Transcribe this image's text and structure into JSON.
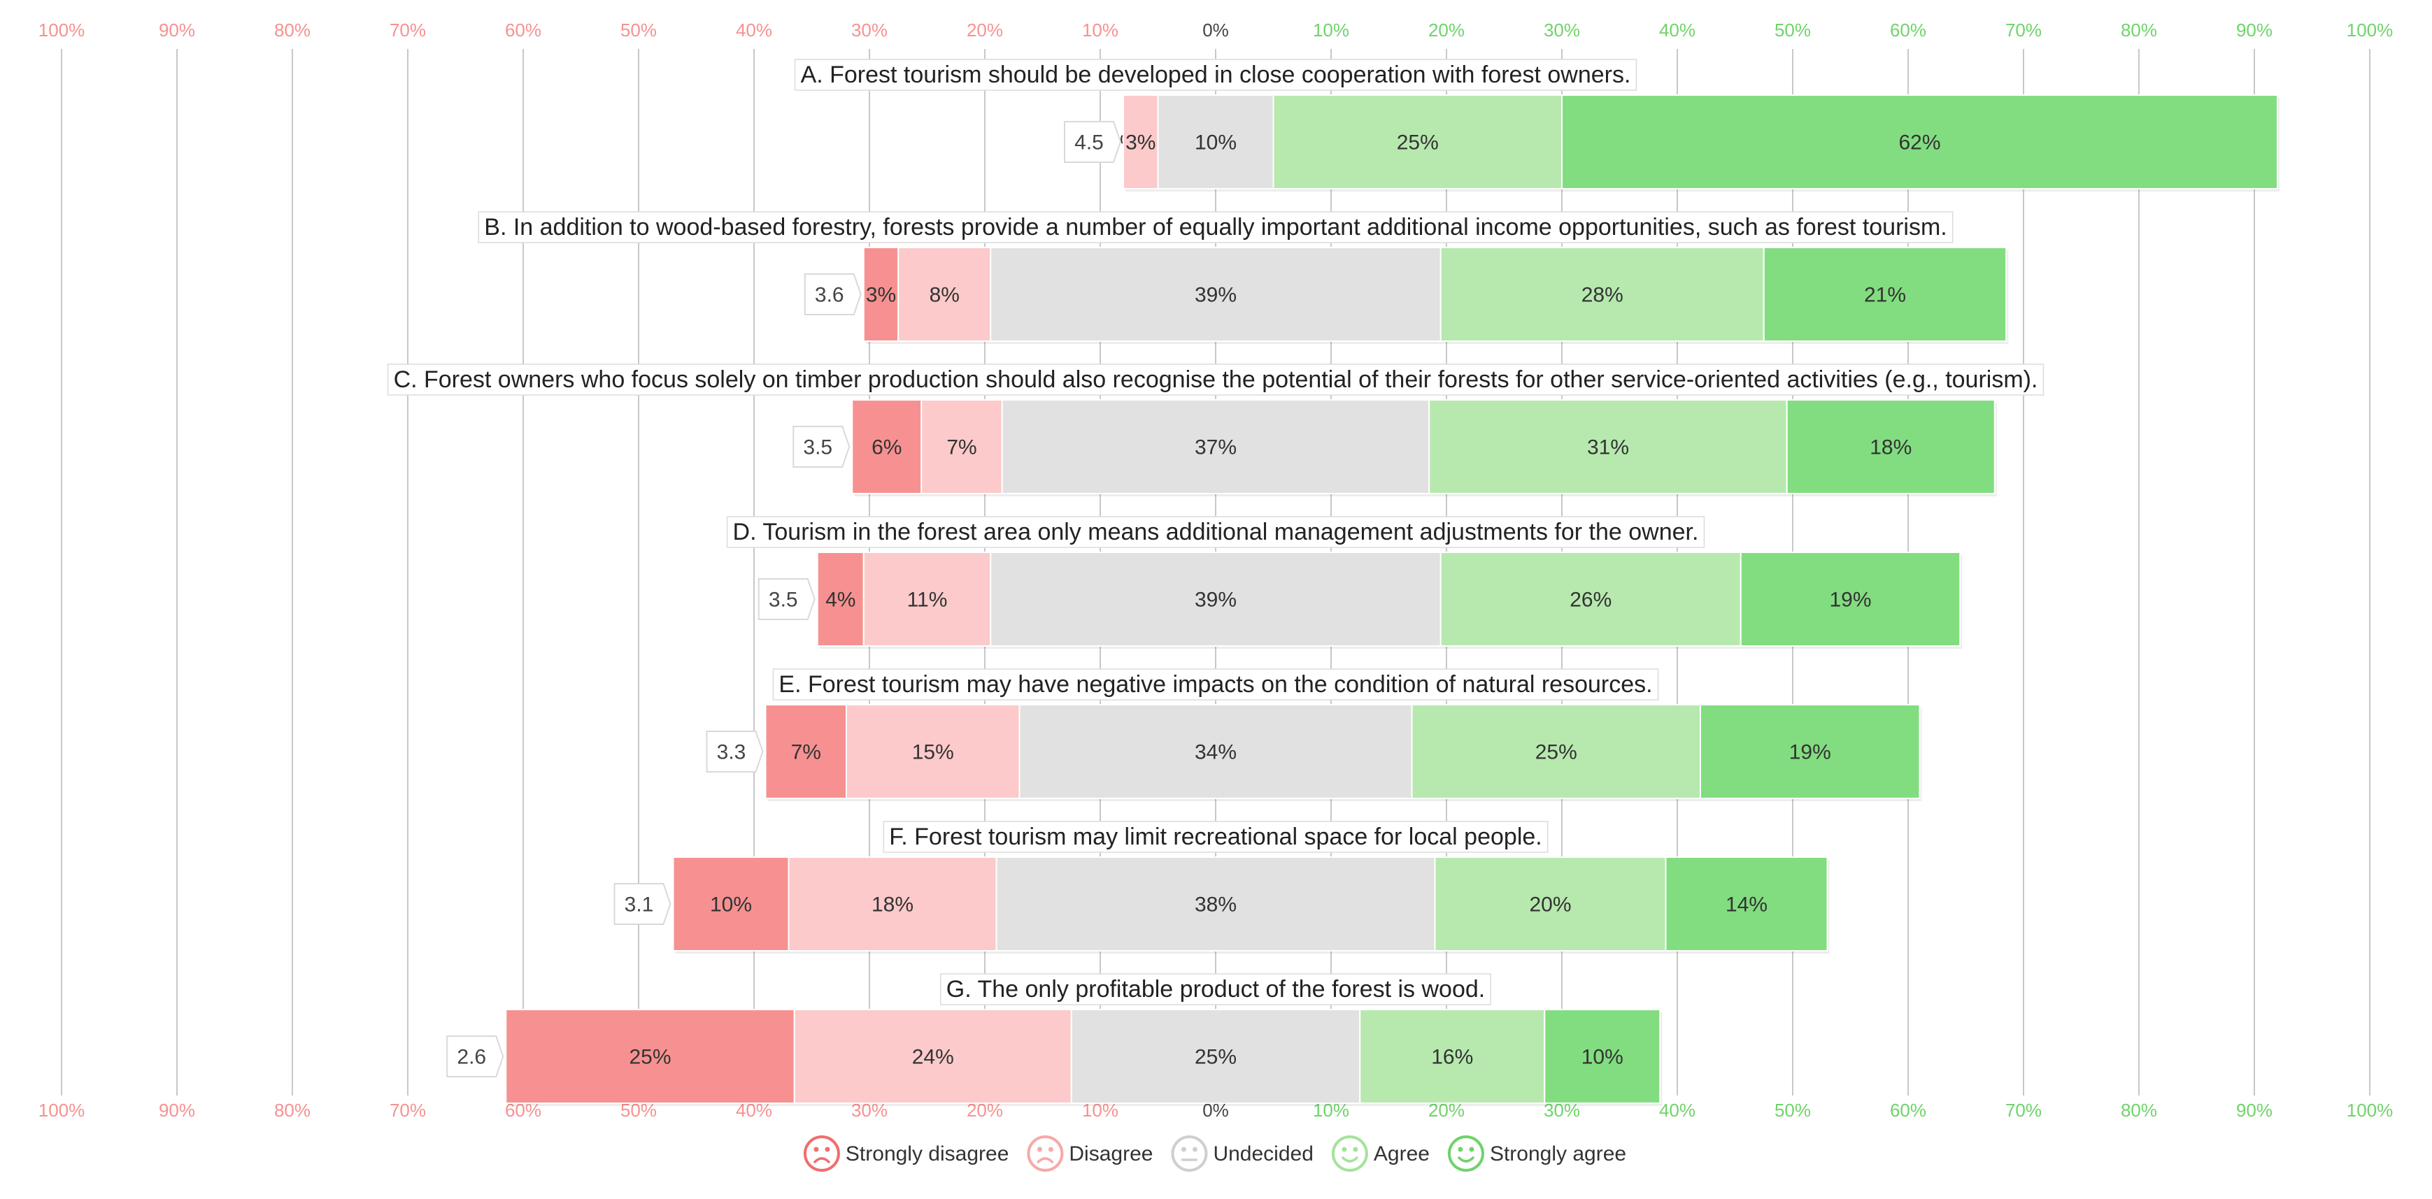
{
  "chart_data": {
    "type": "bar",
    "orientation": "horizontal",
    "stacked": "diverging",
    "center_category": "Undecided",
    "xlim": [
      -100,
      100
    ],
    "x_ticks": [
      "100%",
      "90%",
      "80%",
      "70%",
      "60%",
      "50%",
      "40%",
      "30%",
      "20%",
      "10%",
      "0%",
      "10%",
      "20%",
      "30%",
      "40%",
      "50%",
      "60%",
      "70%",
      "80%",
      "90%",
      "100%"
    ],
    "grid": true,
    "legend_position": "bottom",
    "series": [
      {
        "name": "Strongly disagree",
        "color": "#f79191",
        "icon": "sad-face-icon"
      },
      {
        "name": "Disagree",
        "color": "#fccaca",
        "icon": "sad-face-icon"
      },
      {
        "name": "Undecided",
        "color": "#e1e1e1",
        "icon": "neutral-face-icon"
      },
      {
        "name": "Agree",
        "color": "#b7e9ae",
        "icon": "smile-face-icon"
      },
      {
        "name": "Strongly agree",
        "color": "#82dd80",
        "icon": "smile-face-icon"
      }
    ],
    "items": [
      {
        "label": "A. Forest tourism should be developed in close cooperation with forest owners.",
        "mean": "4.5",
        "values": [
          0,
          3,
          10,
          25,
          62
        ]
      },
      {
        "label": "B. In addition to wood-based forestry, forests provide a number of equally important additional income opportunities, such as forest tourism.",
        "mean": "3.6",
        "values": [
          3,
          8,
          39,
          28,
          21
        ]
      },
      {
        "label": "C. Forest owners who focus solely on timber production should also recognise the potential of their forests for other service-oriented activities (e.g., tourism).",
        "mean": "3.5",
        "values": [
          6,
          7,
          37,
          31,
          18
        ]
      },
      {
        "label": "D. Tourism in the forest area only means additional management adjustments for the owner.",
        "mean": "3.5",
        "values": [
          4,
          11,
          39,
          26,
          19
        ]
      },
      {
        "label": "E. Forest tourism may have negative impacts on the condition of natural resources.",
        "mean": "3.3",
        "values": [
          7,
          15,
          34,
          25,
          19
        ]
      },
      {
        "label": "F. Forest tourism may limit recreational space for local people.",
        "mean": "3.1",
        "values": [
          10,
          18,
          38,
          20,
          14
        ]
      },
      {
        "label": "G. The only profitable product of the forest is wood.",
        "mean": "2.6",
        "values": [
          25,
          24,
          25,
          16,
          10
        ]
      }
    ],
    "colors": {
      "negative_tick": "#f79191",
      "positive_tick": "#6fd36a",
      "center_tick": "#444444",
      "grid": "#c8c8c8",
      "strongly_disagree_icon": "#f06e6e",
      "disagree_icon": "#f7a9a9",
      "undecided_icon": "#cfcfcf",
      "agree_icon": "#a4e39a",
      "strongly_agree_icon": "#6fd36a"
    }
  }
}
